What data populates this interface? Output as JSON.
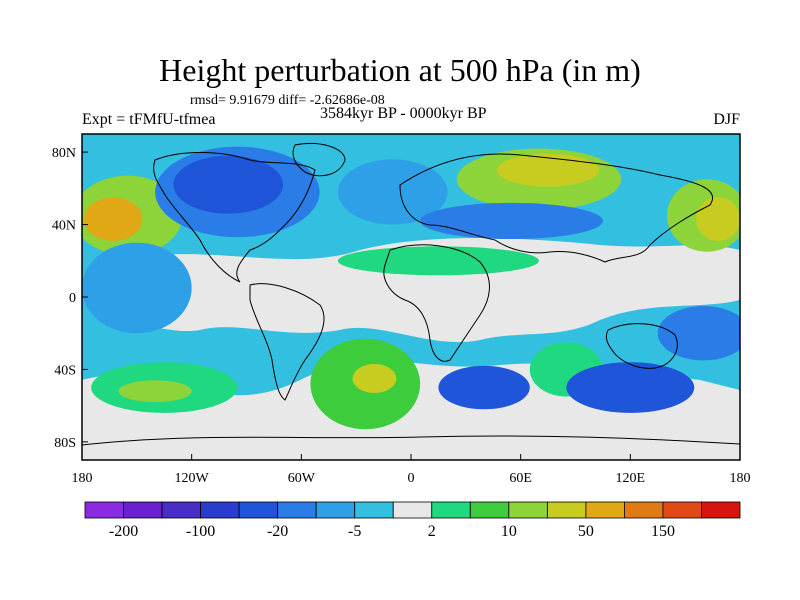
{
  "title": "Height perturbation at 500 hPa (in m)",
  "stats": {
    "rmsd_label": "rmsd=",
    "rmsd": "9.91679",
    "diff_label": "diff=",
    "diff": "-2.62686e-08"
  },
  "experiment": "Expt = tFMfU-tfmea",
  "period": "3584kyr BP - 0000kyr BP",
  "season": "DJF",
  "axes": {
    "lon_ticks": [
      {
        "value": -180,
        "label": "180"
      },
      {
        "value": -120,
        "label": "120W"
      },
      {
        "value": -60,
        "label": "60W"
      },
      {
        "value": 0,
        "label": "0"
      },
      {
        "value": 60,
        "label": "60E"
      },
      {
        "value": 120,
        "label": "120E"
      },
      {
        "value": 180,
        "label": "180"
      }
    ],
    "lat_ticks": [
      {
        "value": 80,
        "label": "80N"
      },
      {
        "value": 40,
        "label": "40N"
      },
      {
        "value": 0,
        "label": "0"
      },
      {
        "value": -40,
        "label": "40S"
      },
      {
        "value": -80,
        "label": "80S"
      }
    ],
    "lon_range": [
      -180,
      180
    ],
    "lat_range": [
      -90,
      90
    ]
  },
  "colorbar": {
    "colors": [
      "#8a2be2",
      "#6a1fd0",
      "#4a2cc6",
      "#2a3ccc",
      "#1f55d8",
      "#2a7ce6",
      "#2ea0e8",
      "#32bfe0",
      "#e8e8e8",
      "#20d880",
      "#3ccc3c",
      "#8cd43a",
      "#c8cc20",
      "#e0a814",
      "#e07a14",
      "#e04a14",
      "#d8140e"
    ],
    "labels": [
      {
        "boundary": 1,
        "text": "-200"
      },
      {
        "boundary": 3,
        "text": "-100"
      },
      {
        "boundary": 5,
        "text": "-20"
      },
      {
        "boundary": 7,
        "text": "-5"
      },
      {
        "boundary": 9,
        "text": "2"
      },
      {
        "boundary": 11,
        "text": "10"
      },
      {
        "boundary": 13,
        "text": "50"
      },
      {
        "boundary": 15,
        "text": "150"
      }
    ]
  },
  "field_regions": [
    {
      "name": "north-pacific-positive",
      "color": "#8cd43a",
      "cx": -155,
      "cy": 45,
      "rx": 30,
      "ry": 22
    },
    {
      "name": "north-pacific-core",
      "color": "#e0a814",
      "cx": -163,
      "cy": 43,
      "rx": 16,
      "ry": 12
    },
    {
      "name": "canada-negative",
      "color": "#2a7ce6",
      "cx": -95,
      "cy": 58,
      "rx": 45,
      "ry": 25
    },
    {
      "name": "canada-core",
      "color": "#1f55d8",
      "cx": -100,
      "cy": 62,
      "rx": 30,
      "ry": 16
    },
    {
      "name": "north-atlantic-negative",
      "color": "#2ea0e8",
      "cx": -10,
      "cy": 58,
      "rx": 30,
      "ry": 18
    },
    {
      "name": "siberia-positive",
      "color": "#8cd43a",
      "cx": 70,
      "cy": 65,
      "rx": 45,
      "ry": 17
    },
    {
      "name": "siberia-core",
      "color": "#c8cc20",
      "cx": 75,
      "cy": 70,
      "rx": 28,
      "ry": 9
    },
    {
      "name": "north-asia-negative",
      "color": "#2a7ce6",
      "cx": 55,
      "cy": 42,
      "rx": 50,
      "ry": 10
    },
    {
      "name": "pacific-east-positive",
      "color": "#8cd43a",
      "cx": 162,
      "cy": 45,
      "rx": 22,
      "ry": 20
    },
    {
      "name": "pacific-east-core",
      "color": "#c8cc20",
      "cx": 168,
      "cy": 43,
      "rx": 12,
      "ry": 12
    },
    {
      "name": "subtropic-positive-band",
      "color": "#20d880",
      "cx": 15,
      "cy": 20,
      "rx": 55,
      "ry": 8
    },
    {
      "name": "east-pacific-tropics-negative",
      "color": "#2ea0e8",
      "cx": -150,
      "cy": 5,
      "rx": 30,
      "ry": 25
    },
    {
      "name": "south-pacific-positive",
      "color": "#20d880",
      "cx": -135,
      "cy": -50,
      "rx": 40,
      "ry": 14
    },
    {
      "name": "south-pacific-core",
      "color": "#8cd43a",
      "cx": -140,
      "cy": -52,
      "rx": 20,
      "ry": 6
    },
    {
      "name": "south-atlantic-positive",
      "color": "#3ccc3c",
      "cx": -25,
      "cy": -48,
      "rx": 30,
      "ry": 25
    },
    {
      "name": "south-atlantic-core",
      "color": "#c8cc20",
      "cx": -20,
      "cy": -45,
      "rx": 12,
      "ry": 8
    },
    {
      "name": "indian-ocean-negative",
      "color": "#1f55d8",
      "cx": 40,
      "cy": -50,
      "rx": 25,
      "ry": 12
    },
    {
      "name": "south-indian-positive",
      "color": "#20d880",
      "cx": 85,
      "cy": -40,
      "rx": 20,
      "ry": 15
    },
    {
      "name": "australia-south-negative",
      "color": "#1f55d8",
      "cx": 120,
      "cy": -50,
      "rx": 35,
      "ry": 14
    },
    {
      "name": "west-pacific-negative",
      "color": "#2a7ce6",
      "cx": 160,
      "cy": -20,
      "rx": 25,
      "ry": 15
    }
  ]
}
